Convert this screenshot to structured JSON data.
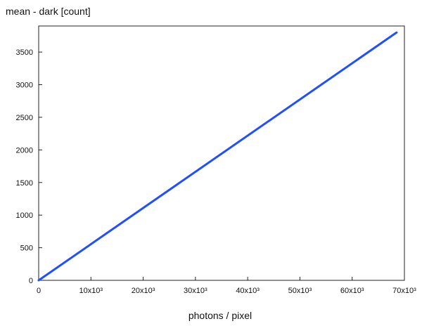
{
  "chart_data": {
    "type": "line",
    "title": "",
    "ylabel": "mean - dark [count]",
    "xlabel": "photons / pixel",
    "xlim": [
      0,
      70000
    ],
    "ylim": [
      0,
      3900
    ],
    "x_ticks": [
      0,
      10000,
      20000,
      30000,
      40000,
      50000,
      60000,
      70000
    ],
    "x_tick_labels": [
      "0",
      "10x10³",
      "20x10³",
      "30x10³",
      "40x10³",
      "50x10³",
      "60x10³",
      "70x10³"
    ],
    "y_ticks": [
      0,
      500,
      1000,
      1500,
      2000,
      2500,
      3000,
      3500
    ],
    "y_tick_labels": [
      "0",
      "500",
      "1000",
      "1500",
      "2000",
      "2500",
      "3000",
      "3500"
    ],
    "grid": false,
    "legend": "none",
    "series": [
      {
        "color": "#1f4fff",
        "x": [
          0,
          68500
        ],
        "y": [
          0,
          3800
        ]
      }
    ]
  }
}
